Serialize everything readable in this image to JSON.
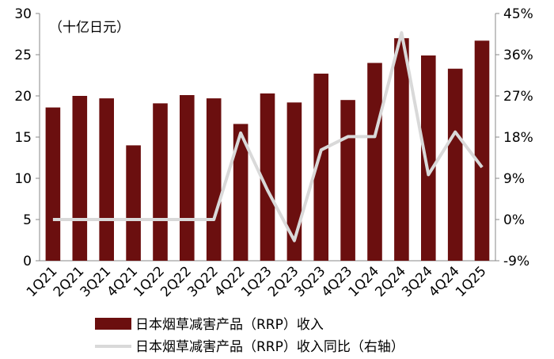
{
  "chart_data": {
    "type": "bar",
    "unit_label": "（十亿日元）",
    "categories": [
      "1Q21",
      "2Q21",
      "3Q21",
      "4Q21",
      "1Q22",
      "2Q22",
      "3Q22",
      "4Q22",
      "1Q23",
      "2Q23",
      "3Q23",
      "4Q23",
      "1Q24",
      "2Q24",
      "3Q24",
      "4Q24",
      "1Q25"
    ],
    "series": [
      {
        "name": "日本烟草减害产品（RRP）收入",
        "type": "bar",
        "axis": "left",
        "color": "#6B0F0F",
        "values": [
          18.6,
          20.0,
          19.7,
          14.0,
          19.1,
          20.1,
          19.7,
          16.6,
          20.3,
          19.2,
          22.7,
          19.5,
          24.0,
          27.0,
          24.9,
          23.3,
          26.7
        ]
      },
      {
        "name": "日本烟草减害产品（RRP）收入同比（右轴）",
        "type": "line",
        "axis": "right",
        "color": "#D9D9D9",
        "values": [
          0,
          0,
          0,
          0,
          0,
          0,
          0,
          18.9,
          6.4,
          -4.6,
          15.2,
          18.1,
          18.1,
          40.8,
          9.8,
          19.1,
          11.4
        ]
      }
    ],
    "y_left": {
      "ylim": [
        0,
        30
      ],
      "ticks": [
        "0",
        "5",
        "10",
        "15",
        "20",
        "25",
        "30"
      ]
    },
    "y_right": {
      "ylim": [
        -9,
        45
      ],
      "ticks": [
        "-9%",
        "0%",
        "9%",
        "18%",
        "27%",
        "36%",
        "45%"
      ]
    },
    "grid": false,
    "legend_position": "bottom-left"
  }
}
